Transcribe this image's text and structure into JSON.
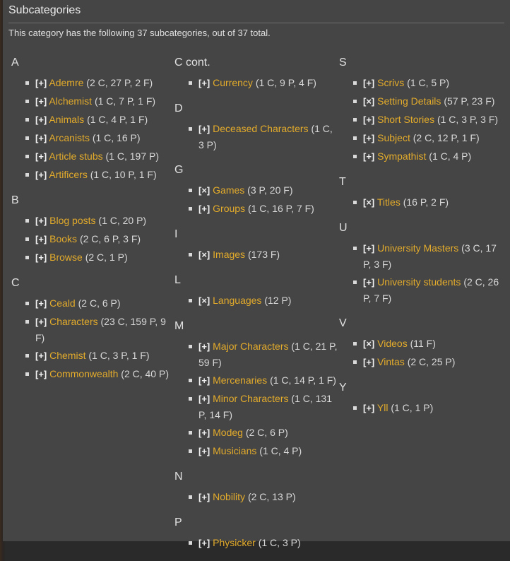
{
  "title": "Subcategories",
  "summary": "This category has the following 37 subcategories, out of 37 total.",
  "columns": [
    [
      {
        "letter": "A",
        "items": [
          {
            "toggle": "[+]",
            "name": "Ademre",
            "count": "(2 C, 27 P, 2 F)"
          },
          {
            "toggle": "[+]",
            "name": "Alchemist",
            "count": "(1 C, 7 P, 1 F)"
          },
          {
            "toggle": "[+]",
            "name": "Animals",
            "count": "(1 C, 4 P, 1 F)"
          },
          {
            "toggle": "[+]",
            "name": "Arcanists",
            "count": "(1 C, 16 P)"
          },
          {
            "toggle": "[+]",
            "name": "Article stubs",
            "count": "(1 C, 197 P)"
          },
          {
            "toggle": "[+]",
            "name": "Artificers",
            "count": "(1 C, 10 P, 1 F)"
          }
        ]
      },
      {
        "letter": "B",
        "items": [
          {
            "toggle": "[+]",
            "name": "Blog posts",
            "count": "(1 C, 20 P)"
          },
          {
            "toggle": "[+]",
            "name": "Books",
            "count": "(2 C, 6 P, 3 F)"
          },
          {
            "toggle": "[+]",
            "name": "Browse",
            "count": "(2 C, 1 P)"
          }
        ]
      },
      {
        "letter": "C",
        "items": [
          {
            "toggle": "[+]",
            "name": "Ceald",
            "count": "(2 C, 6 P)"
          },
          {
            "toggle": "[+]",
            "name": "Characters",
            "count": "(23 C, 159 P, 9 F)"
          },
          {
            "toggle": "[+]",
            "name": "Chemist",
            "count": "(1 C, 3 P, 1 F)"
          },
          {
            "toggle": "[+]",
            "name": "Commonwealth",
            "count": "(2 C, 40 P)"
          }
        ]
      }
    ],
    [
      {
        "letter": "C cont.",
        "items": [
          {
            "toggle": "[+]",
            "name": "Currency",
            "count": "(1 C, 9 P, 4 F)"
          }
        ]
      },
      {
        "letter": "D",
        "items": [
          {
            "toggle": "[+]",
            "name": "Deceased Characters",
            "count": "(1 C, 3 P)"
          }
        ]
      },
      {
        "letter": "G",
        "items": [
          {
            "toggle": "[×]",
            "name": "Games",
            "count": "(3 P, 20 F)"
          },
          {
            "toggle": "[+]",
            "name": "Groups",
            "count": "(1 C, 16 P, 7 F)"
          }
        ]
      },
      {
        "letter": "I",
        "items": [
          {
            "toggle": "[×]",
            "name": "Images",
            "count": "(173 F)"
          }
        ]
      },
      {
        "letter": "L",
        "items": [
          {
            "toggle": "[×]",
            "name": "Languages",
            "count": "(12 P)"
          }
        ]
      },
      {
        "letter": "M",
        "items": [
          {
            "toggle": "[+]",
            "name": "Major Characters",
            "count": "(1 C, 21 P, 59 F)"
          },
          {
            "toggle": "[+]",
            "name": "Mercenaries",
            "count": "(1 C, 14 P, 1 F)"
          },
          {
            "toggle": "[+]",
            "name": "Minor Characters",
            "count": "(1 C, 131 P, 14 F)"
          },
          {
            "toggle": "[+]",
            "name": "Modeg",
            "count": "(2 C, 6 P)"
          },
          {
            "toggle": "[+]",
            "name": "Musicians",
            "count": "(1 C, 4 P)"
          }
        ]
      },
      {
        "letter": "N",
        "items": [
          {
            "toggle": "[+]",
            "name": "Nobility",
            "count": "(2 C, 13 P)"
          }
        ]
      },
      {
        "letter": "P",
        "items": [
          {
            "toggle": "[+]",
            "name": "Physicker",
            "count": "(1 C, 3 P)"
          }
        ]
      }
    ],
    [
      {
        "letter": "S",
        "items": [
          {
            "toggle": "[+]",
            "name": "Scrivs",
            "count": "(1 C, 5 P)"
          },
          {
            "toggle": "[×]",
            "name": "Setting Details",
            "count": "(57 P, 23 F)"
          },
          {
            "toggle": "[+]",
            "name": "Short Stories",
            "count": "(1 C, 3 P, 3 F)"
          },
          {
            "toggle": "[+]",
            "name": "Subject",
            "count": "(2 C, 12 P, 1 F)"
          },
          {
            "toggle": "[+]",
            "name": "Sympathist",
            "count": "(1 C, 4 P)"
          }
        ]
      },
      {
        "letter": "T",
        "items": [
          {
            "toggle": "[×]",
            "name": "Titles",
            "count": "(16 P, 2 F)"
          }
        ]
      },
      {
        "letter": "U",
        "items": [
          {
            "toggle": "[+]",
            "name": "University Masters",
            "count": "(3 C, 17 P, 3 F)"
          },
          {
            "toggle": "[+]",
            "name": "University students",
            "count": "(2 C, 26 P, 7 F)"
          }
        ]
      },
      {
        "letter": "V",
        "items": [
          {
            "toggle": "[×]",
            "name": "Videos",
            "count": "(11 F)"
          },
          {
            "toggle": "[+]",
            "name": "Vintas",
            "count": "(2 C, 25 P)"
          }
        ]
      },
      {
        "letter": "Y",
        "items": [
          {
            "toggle": "[+]",
            "name": "Yll",
            "count": "(1 C, 1 P)"
          }
        ]
      }
    ]
  ]
}
